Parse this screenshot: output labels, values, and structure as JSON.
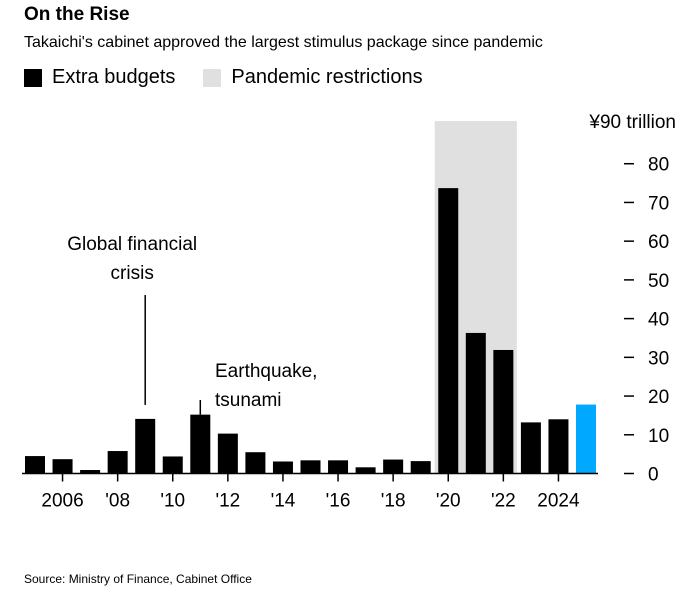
{
  "title": "On the Rise",
  "subtitle": "Takaichi's cabinet approved the largest stimulus package since pandemic",
  "legend": [
    {
      "label": "Extra budgets",
      "color": "#000000"
    },
    {
      "label": "Pandemic restrictions",
      "color": "#e0e0e0"
    }
  ],
  "source": "Source: Ministry of Finance, Cabinet Office",
  "chart_data": {
    "type": "bar",
    "x": [
      2005,
      2006,
      2007,
      2008,
      2009,
      2010,
      2011,
      2012,
      2013,
      2014,
      2015,
      2016,
      2017,
      2018,
      2019,
      2020,
      2021,
      2022,
      2023,
      2024,
      2025
    ],
    "values": [
      4.5,
      3.7,
      0.9,
      5.8,
      14.1,
      4.4,
      15.2,
      10.3,
      5.5,
      3.1,
      3.4,
      3.4,
      1.6,
      3.6,
      3.2,
      73.7,
      36.3,
      31.9,
      13.2,
      14.0,
      17.8
    ],
    "colors": {
      "default": "#000000",
      "highlight": "#00a8ff",
      "shade": "#e0e0e0"
    },
    "highlight_year": 2025,
    "shaded_range": [
      2020,
      2022
    ],
    "ylim": [
      0,
      90
    ],
    "y_ticks": [
      0,
      10,
      20,
      30,
      40,
      50,
      60,
      70,
      80
    ],
    "y_top_label": "¥90 trillion",
    "x_ticks": [
      {
        "year": 2006,
        "label": "2006"
      },
      {
        "year": 2008,
        "label": "'08"
      },
      {
        "year": 2010,
        "label": "'10"
      },
      {
        "year": 2012,
        "label": "'12"
      },
      {
        "year": 2014,
        "label": "'14"
      },
      {
        "year": 2016,
        "label": "'16"
      },
      {
        "year": 2018,
        "label": "'18"
      },
      {
        "year": 2020,
        "label": "'20"
      },
      {
        "year": 2022,
        "label": "'22"
      },
      {
        "year": 2024,
        "label": "2024"
      }
    ],
    "annotations": [
      {
        "year": 2009,
        "lines": [
          "Global financial",
          "crisis"
        ]
      },
      {
        "year": 2011,
        "lines": [
          "Earthquake,",
          "tsunami"
        ]
      }
    ]
  }
}
